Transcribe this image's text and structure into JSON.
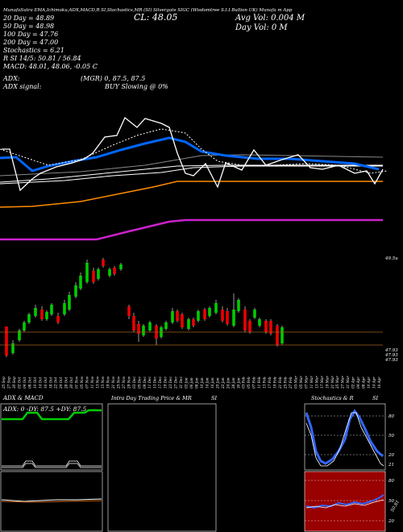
{
  "header": {
    "topline": "MunafaSutra EMA,Ichimoku,ADX,MACD,R   SI,Stochastics,MR   (SI) Silvergate SIGC   (Wisdomtree S.I.I Bullion UK) Munafa   m App",
    "legend": [
      {
        "text": "20  Day  = 48.89",
        "color": "#ffffff"
      },
      {
        "text": "50  Day  = 48.98",
        "color": "#ffffff"
      },
      {
        "text": "100  Day  = 47.76",
        "color": "#ff8c00"
      },
      {
        "text": "200  Day  = 47.00",
        "color": "#ff66ff"
      }
    ],
    "close_text": "CL: 48.05",
    "avg_vol_text": "Avg Vol: 0.004  M",
    "day_vol_text": "Day Vol: 0   M",
    "stoch_text": "Stochastics = 6.21",
    "rsi_text": "R   SI 14/5: 50.81 / 56.84",
    "macd_text": "MACD: 48.01, 48.06, -0.05 C",
    "adx_text": "ADX:",
    "adx_mid": "(MGR) 0, 87.5,  87.5",
    "adx_signal": "ADX  signal:",
    "buy_text": "BUY Slowing @ 0%"
  },
  "colors": {
    "ema20": "#ffffff",
    "ema50": "#0066ff",
    "ema100": "#ff8c00",
    "ema200": "#cc22cc",
    "up": "#00cc00",
    "down": "#ee0000",
    "rsi_bg": "#990000",
    "stoch_line": "#3366ff"
  },
  "chart_data": {
    "type": "candlestick",
    "price_axis_labels": [
      "49.5u",
      "47.93",
      "47.93",
      "47.93"
    ],
    "dates": [
      "25 Sep",
      "27 Sep",
      "30 Sep",
      "02 Oct",
      "04 Oct",
      "08 Oct",
      "10 Oct",
      "14 Oct",
      "16 Oct",
      "18 Oct",
      "22 Oct",
      "24 Oct",
      "28 Oct",
      "30 Oct",
      "01 Nov",
      "05 Nov",
      "07 Nov",
      "11 Nov",
      "13 Nov",
      "15 Nov",
      "19 Nov",
      "21 Nov",
      "25 Nov",
      "27 Nov",
      "29 Nov",
      "03 Dec",
      "05 Dec",
      "09 Dec",
      "11 Dec",
      "13 Dec",
      "17 Dec",
      "19 Dec",
      "23 Dec",
      "27 Dec",
      "31 Dec",
      "02 Jan",
      "06 Jan",
      "08 Jan",
      "10 Jan",
      "14 Jan",
      "16 Jan",
      "20 Jan",
      "22 Jan",
      "24 Jan",
      "28 Jan",
      "30 Jan",
      "03 Feb",
      "05 Feb",
      "07 Feb",
      "11 Feb",
      "13 Feb",
      "17 Feb",
      "19 Feb",
      "21 Feb",
      "25 Feb",
      "27 Feb",
      "03 Mar",
      "05 Mar",
      "07 Mar",
      "11 Mar",
      "13 Mar",
      "17 Mar",
      "19 Mar",
      "21 Mar",
      "25 Mar",
      "27 Mar",
      "31 Mar",
      "02 Apr",
      "04 Apr",
      "08 Apr",
      "10 Apr",
      "14 Apr",
      "16 Apr"
    ],
    "series_names": [
      "20 Day",
      "50 Day",
      "100 Day",
      "200 Day"
    ]
  },
  "panels": {
    "adx_title": "ADX  & MACD",
    "adx_values": "ADX: 0     -DY: 87.5  +DY: 87.5",
    "intra_title": "Intra  Day Trading Price  & MR",
    "si_label": "SI",
    "stoch_title": "Stochastics & R",
    "stoch_axis": [
      "80",
      "50",
      "20"
    ],
    "rsi_axis": [
      "80",
      "50",
      "20"
    ],
    "stoch_value_label": "21",
    "rsi_value_label": "50.81"
  }
}
